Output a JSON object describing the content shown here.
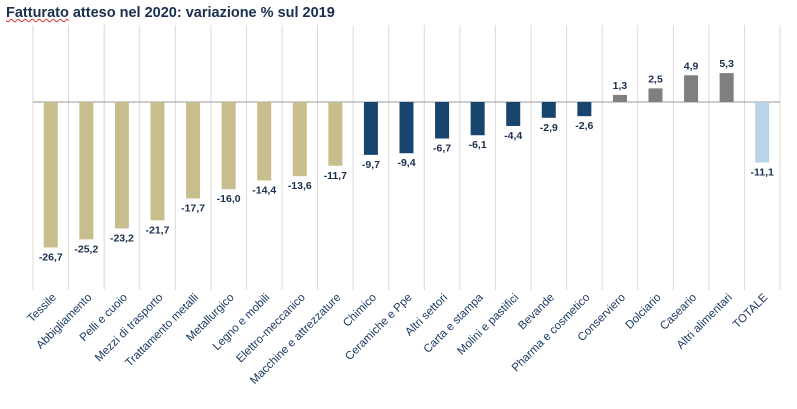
{
  "chart_data": {
    "type": "bar",
    "title": "Fatturato atteso nel 2020: variazione % sul 2019",
    "title_underlined_word": "Fatturato",
    "categories": [
      "Tessile",
      "Abbigliamento",
      "Pelli e cuoio",
      "Mezzi di trasporto",
      "Trattamento metalli",
      "Metallurgico",
      "Legno e mobili",
      "Elettro-meccanico",
      "Macchine e attrezzature",
      "Chimico",
      "Ceramiche e Ppe",
      "Altri settori",
      "Carta e stampa",
      "Molini e pastifici",
      "Bevande",
      "Pharma e cosmetico",
      "Conserviero",
      "Dolciario",
      "Caseario",
      "Altri alimentari",
      "TOTALE"
    ],
    "values": [
      -26.7,
      -25.2,
      -23.2,
      -21.7,
      -17.7,
      -16.0,
      -14.4,
      -13.6,
      -11.7,
      -9.7,
      -9.4,
      -6.7,
      -6.1,
      -4.4,
      -2.9,
      -2.6,
      1.3,
      2.5,
      4.9,
      5.3,
      -11.1
    ],
    "value_labels": [
      "-26,7",
      "-25,2",
      "-23,2",
      "-21,7",
      "-17,7",
      "-16,0",
      "-14,4",
      "-13,6",
      "-11,7",
      "-9,7",
      "-9,4",
      "-6,7",
      "-6,1",
      "-4,4",
      "-2,9",
      "-2,6",
      "1,3",
      "2,5",
      "4,9",
      "5,3",
      "-11,1"
    ],
    "bar_colors": [
      "#c8bd8d",
      "#c8bd8d",
      "#c8bd8d",
      "#c8bd8d",
      "#c8bd8d",
      "#c8bd8d",
      "#c8bd8d",
      "#c8bd8d",
      "#c8bd8d",
      "#17456e",
      "#17456e",
      "#17456e",
      "#17456e",
      "#17456e",
      "#17456e",
      "#17456e",
      "#7f7f7f",
      "#7f7f7f",
      "#7f7f7f",
      "#7f7f7f",
      "#b9d4e6"
    ],
    "ylim": [
      -30,
      6
    ],
    "grid": "vertical separators",
    "legend": "none",
    "xlabel": "",
    "ylabel": ""
  }
}
